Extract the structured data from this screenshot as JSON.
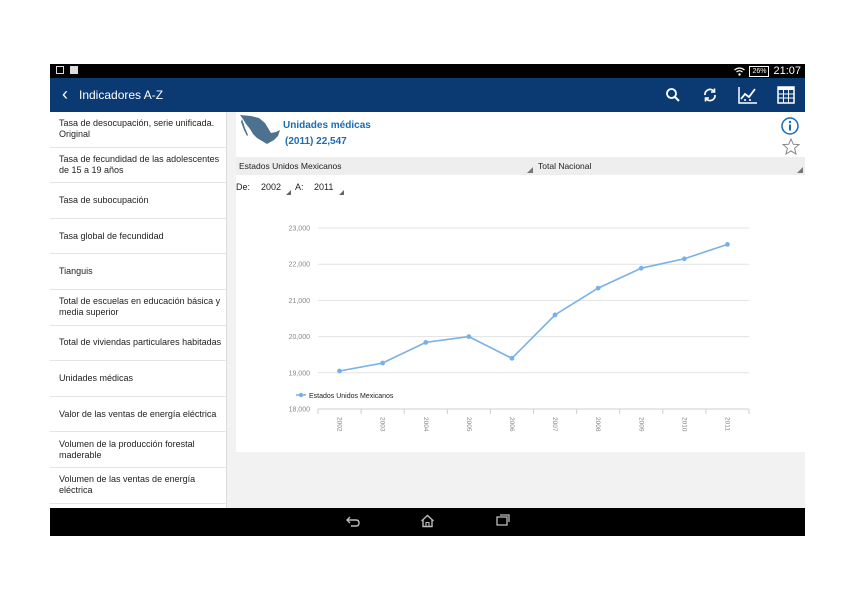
{
  "statusbar": {
    "battery": "26%",
    "time": "21:07"
  },
  "header": {
    "title": "Indicadores A-Z"
  },
  "toolbar": [
    "search-icon",
    "refresh-icon",
    "chart-icon",
    "table-icon"
  ],
  "sidebar": {
    "items": [
      {
        "label": "Tasa de desocupación, serie unificada. Original"
      },
      {
        "label": "Tasa de fecundidad de las adolescentes de 15 a 19 años"
      },
      {
        "label": "Tasa de subocupación"
      },
      {
        "label": "Tasa global de fecundidad"
      },
      {
        "label": "Tianguis"
      },
      {
        "label": "Total de escuelas en educación básica y media superior"
      },
      {
        "label": "Total de viviendas particulares habitadas"
      },
      {
        "label": "Unidades médicas"
      },
      {
        "label": "Valor de las ventas de energía eléctrica"
      },
      {
        "label": "Volumen de la producción forestal maderable"
      },
      {
        "label": "Volumen de las ventas de energía eléctrica"
      }
    ]
  },
  "indicator": {
    "title": "Unidades médicas",
    "value": "(2011) 22,547"
  },
  "filters": {
    "region": "Estados Unidos Mexicanos",
    "scope": "Total Nacional",
    "from_label": "De:",
    "from_value": "2002",
    "to_label": "A:",
    "to_value": "2011"
  },
  "chart_data": {
    "type": "line",
    "x": [
      "2002",
      "2003",
      "2004",
      "2005",
      "2006",
      "2007",
      "2008",
      "2009",
      "2010",
      "2011"
    ],
    "series": [
      {
        "name": "Estados Unidos Mexicanos",
        "values": [
          19050,
          19270,
          19840,
          20000,
          19400,
          20600,
          21340,
          21890,
          22150,
          22547
        ]
      }
    ],
    "ylim": [
      18000,
      23000
    ],
    "yticks": [
      "18,000",
      "19,000",
      "20,000",
      "21,000",
      "22,000",
      "23,000"
    ],
    "grid": true,
    "legend": "bottom-left",
    "color": "#79b0e6"
  }
}
